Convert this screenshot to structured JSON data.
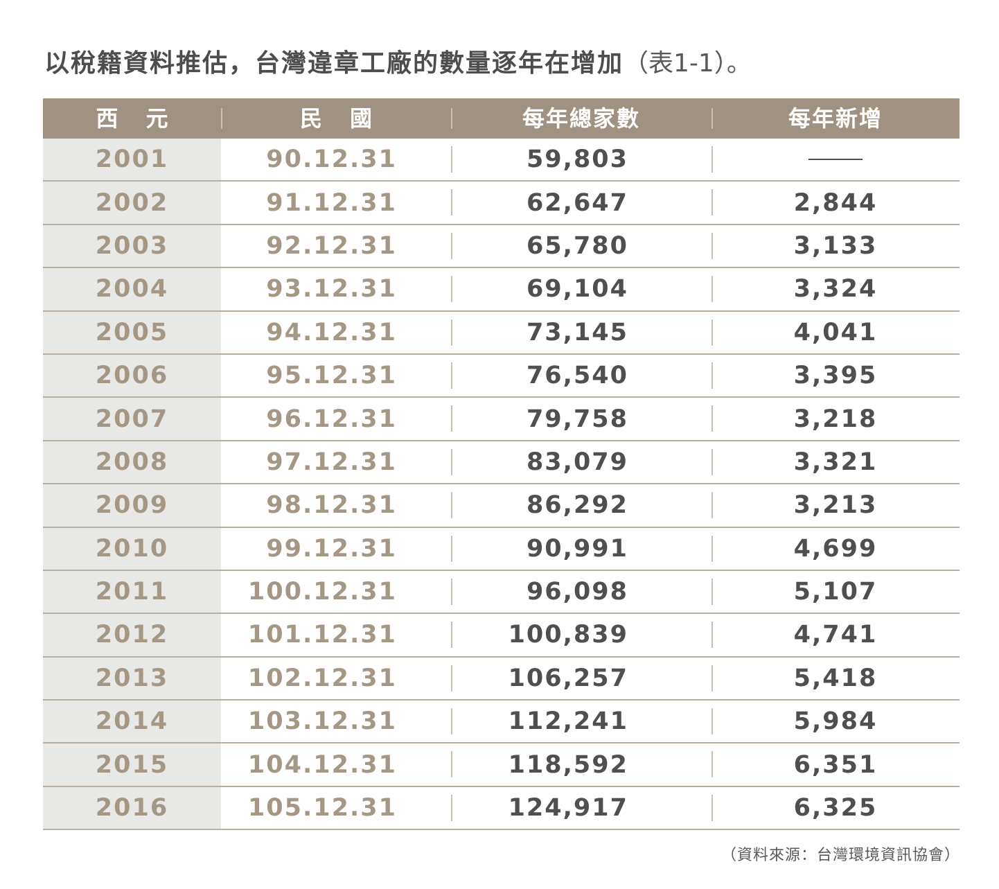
{
  "title": "以稅籍資料推估，台灣違章工廠的數量逐年在增加",
  "title_suffix": "（表1-1）。",
  "source": "（資料來源：台灣環境資訊協會）",
  "chart_data": {
    "type": "table",
    "columns": [
      "西元",
      "民國",
      "每年總家數",
      "每年新增"
    ],
    "rows": [
      {
        "year": "2001",
        "roc": "90.12.31",
        "total": "59,803",
        "new": "——"
      },
      {
        "year": "2002",
        "roc": "91.12.31",
        "total": "62,647",
        "new": "2,844"
      },
      {
        "year": "2003",
        "roc": "92.12.31",
        "total": "65,780",
        "new": "3,133"
      },
      {
        "year": "2004",
        "roc": "93.12.31",
        "total": "69,104",
        "new": "3,324"
      },
      {
        "year": "2005",
        "roc": "94.12.31",
        "total": "73,145",
        "new": "4,041"
      },
      {
        "year": "2006",
        "roc": "95.12.31",
        "total": "76,540",
        "new": "3,395"
      },
      {
        "year": "2007",
        "roc": "96.12.31",
        "total": "79,758",
        "new": "3,218"
      },
      {
        "year": "2008",
        "roc": "97.12.31",
        "total": "83,079",
        "new": "3,321"
      },
      {
        "year": "2009",
        "roc": "98.12.31",
        "total": "86,292",
        "new": "3,213"
      },
      {
        "year": "2010",
        "roc": "99.12.31",
        "total": "90,991",
        "new": "4,699"
      },
      {
        "year": "2011",
        "roc": "100.12.31",
        "total": "96,098",
        "new": "5,107"
      },
      {
        "year": "2012",
        "roc": "101.12.31",
        "total": "100,839",
        "new": "4,741"
      },
      {
        "year": "2013",
        "roc": "102.12.31",
        "total": "106,257",
        "new": "5,418"
      },
      {
        "year": "2014",
        "roc": "103.12.31",
        "total": "112,241",
        "new": "5,984"
      },
      {
        "year": "2015",
        "roc": "104.12.31",
        "total": "118,592",
        "new": "6,351"
      },
      {
        "year": "2016",
        "roc": "105.12.31",
        "total": "124,917",
        "new": "6,325"
      }
    ]
  },
  "colors": {
    "header_bg": "#a09282",
    "year_col_bg": "#e8e8e7",
    "accent_text": "#a59786",
    "dark_text": "#4f4f4f"
  }
}
